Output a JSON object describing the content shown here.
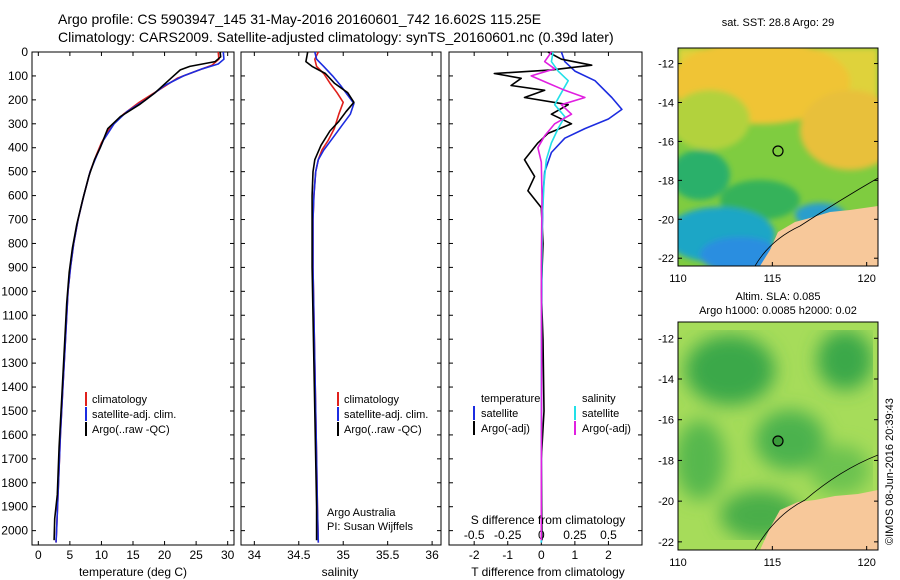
{
  "title_line1": "Argo profile: CS 5903947_145 31-May-2016 20160601_742 16.602S 115.25E",
  "title_line2": "Climatology: CARS2009. Satellite-adjusted climatology: synTS_20160601.nc (0.39d later)",
  "credit": "©IMOS 08-Jun-2016 20:39:43",
  "colors": {
    "climatology": "#e0201c",
    "satellite": "#1c2ce0",
    "argo": "#000000",
    "salinity_satellite": "#22e0e8",
    "salinity_argo": "#e020e0",
    "land": "#f7c89a"
  },
  "depth_ticks": [
    "0",
    "100",
    "200",
    "300",
    "400",
    "500",
    "600",
    "700",
    "800",
    "900",
    "1000",
    "1100",
    "1200",
    "1300",
    "1400",
    "1500",
    "1600",
    "1700",
    "1800",
    "1900",
    "2000"
  ],
  "chart_data": [
    {
      "type": "line",
      "xlabel": "temperature (deg C)",
      "ylabel": "",
      "xlim": [
        -1,
        31
      ],
      "ylim": [
        2060,
        0
      ],
      "xticks": [
        "0",
        "5",
        "10",
        "15",
        "20",
        "25",
        "30"
      ],
      "legend": [
        "climatology",
        "satellite-adj. clim.",
        "Argo(..raw -QC)"
      ],
      "legend_placement": "bottom-right",
      "series": [
        {
          "name": "climatology",
          "color_key": "climatology",
          "points": [
            [
              28.5,
              0
            ],
            [
              28.6,
              30
            ],
            [
              27.5,
              55
            ],
            [
              25,
              80
            ],
            [
              22,
              110
            ],
            [
              19,
              160
            ],
            [
              16,
              210
            ],
            [
              13.5,
              260
            ],
            [
              11.5,
              310
            ],
            [
              10,
              380
            ],
            [
              9.2,
              430
            ],
            [
              8.2,
              500
            ],
            [
              7.2,
              600
            ],
            [
              6.3,
              700
            ],
            [
              5.6,
              800
            ],
            [
              5.1,
              900
            ],
            [
              4.7,
              1000
            ],
            [
              4.3,
              1200
            ],
            [
              3.9,
              1400
            ],
            [
              3.5,
              1600
            ],
            [
              3.2,
              1800
            ],
            [
              2.9,
              2000
            ],
            [
              2.8,
              2050
            ]
          ]
        },
        {
          "name": "satellite-adj. clim.",
          "color_key": "satellite",
          "points": [
            [
              29.3,
              0
            ],
            [
              29.4,
              30
            ],
            [
              28.5,
              50
            ],
            [
              26,
              70
            ],
            [
              23,
              100
            ],
            [
              20,
              140
            ],
            [
              17,
              200
            ],
            [
              14,
              250
            ],
            [
              12,
              300
            ],
            [
              10.3,
              370
            ],
            [
              9.3,
              430
            ],
            [
              8.2,
              500
            ],
            [
              7.2,
              600
            ],
            [
              6.3,
              700
            ],
            [
              5.6,
              800
            ],
            [
              5.1,
              900
            ],
            [
              4.7,
              1000
            ],
            [
              4.3,
              1200
            ],
            [
              3.9,
              1400
            ],
            [
              3.5,
              1600
            ],
            [
              3.2,
              1800
            ],
            [
              2.9,
              2000
            ],
            [
              2.8,
              2050
            ]
          ]
        },
        {
          "name": "Argo(..raw -QC)",
          "color_key": "argo",
          "points": [
            [
              28.8,
              0
            ],
            [
              28.9,
              20
            ],
            [
              28,
              40
            ],
            [
              24,
              60
            ],
            [
              22.5,
              75
            ],
            [
              21,
              110
            ],
            [
              18.5,
              170
            ],
            [
              16,
              220
            ],
            [
              13,
              270
            ],
            [
              11,
              320
            ],
            [
              9.8,
              400
            ],
            [
              8.9,
              450
            ],
            [
              8,
              520
            ],
            [
              7,
              620
            ],
            [
              6.1,
              720
            ],
            [
              5.4,
              820
            ],
            [
              4.9,
              920
            ],
            [
              4.5,
              1050
            ],
            [
              4.1,
              1250
            ],
            [
              3.7,
              1450
            ],
            [
              3.3,
              1650
            ],
            [
              3,
              1850
            ],
            [
              2.6,
              1950
            ],
            [
              2.5,
              2040
            ]
          ]
        }
      ]
    },
    {
      "type": "line",
      "xlabel": "salinity",
      "ylabel": "",
      "xlim": [
        33.85,
        36.1
      ],
      "ylim": [
        2060,
        0
      ],
      "xticks": [
        "34",
        "34.5",
        "35",
        "35.5",
        "36"
      ],
      "legend": [
        "climatology",
        "satellite-adj. clim.",
        "Argo(..raw -QC)"
      ],
      "legend_placement": "bottom-right",
      "annotation": [
        "Argo Australia",
        "PI: Susan Wijffels"
      ],
      "series": [
        {
          "name": "climatology",
          "color_key": "climatology",
          "points": [
            [
              34.72,
              0
            ],
            [
              34.68,
              30
            ],
            [
              34.7,
              60
            ],
            [
              34.78,
              90
            ],
            [
              34.85,
              130
            ],
            [
              34.93,
              170
            ],
            [
              35,
              210
            ],
            [
              34.95,
              260
            ],
            [
              34.9,
              320
            ],
            [
              34.83,
              370
            ],
            [
              34.76,
              410
            ],
            [
              34.72,
              450
            ],
            [
              34.69,
              500
            ],
            [
              34.67,
              600
            ],
            [
              34.66,
              700
            ],
            [
              34.66,
              900
            ],
            [
              34.67,
              1100
            ],
            [
              34.68,
              1300
            ],
            [
              34.69,
              1500
            ],
            [
              34.7,
              1700
            ],
            [
              34.71,
              1900
            ],
            [
              34.72,
              2050
            ]
          ]
        },
        {
          "name": "satellite-adj. clim.",
          "color_key": "satellite",
          "points": [
            [
              34.68,
              0
            ],
            [
              34.7,
              30
            ],
            [
              34.78,
              60
            ],
            [
              34.88,
              100
            ],
            [
              34.97,
              140
            ],
            [
              35.05,
              180
            ],
            [
              35.12,
              215
            ],
            [
              35.08,
              260
            ],
            [
              34.98,
              310
            ],
            [
              34.88,
              360
            ],
            [
              34.78,
              410
            ],
            [
              34.72,
              450
            ],
            [
              34.69,
              500
            ],
            [
              34.67,
              600
            ],
            [
              34.66,
              700
            ],
            [
              34.66,
              900
            ],
            [
              34.67,
              1100
            ],
            [
              34.68,
              1300
            ],
            [
              34.69,
              1500
            ],
            [
              34.7,
              1700
            ],
            [
              34.71,
              1900
            ],
            [
              34.72,
              2050
            ]
          ]
        },
        {
          "name": "Argo(..raw -QC)",
          "color_key": "argo",
          "points": [
            [
              34.6,
              0
            ],
            [
              34.58,
              40
            ],
            [
              34.65,
              60
            ],
            [
              34.8,
              90
            ],
            [
              34.9,
              130
            ],
            [
              35.05,
              170
            ],
            [
              35.12,
              210
            ],
            [
              35.03,
              250
            ],
            [
              34.95,
              290
            ],
            [
              34.85,
              330
            ],
            [
              34.75,
              390
            ],
            [
              34.68,
              450
            ],
            [
              34.66,
              500
            ],
            [
              34.65,
              600
            ],
            [
              34.65,
              700
            ],
            [
              34.65,
              900
            ],
            [
              34.66,
              1100
            ],
            [
              34.67,
              1300
            ],
            [
              34.68,
              1500
            ],
            [
              34.69,
              1700
            ],
            [
              34.7,
              1900
            ],
            [
              34.7,
              2040
            ]
          ]
        }
      ]
    },
    {
      "type": "line",
      "xlabel": "T difference from climatology",
      "xlabel_top": "S difference from climatology",
      "ylabel": "",
      "xlim": [
        -2.75,
        3.0
      ],
      "ylim": [
        2060,
        0
      ],
      "xticks": [
        "-2",
        "-1",
        "0",
        "1",
        "2"
      ],
      "xticks_top": [
        "-0.5",
        "-0.25",
        "0",
        "0.25",
        "0.5"
      ],
      "legend": [
        "temperature",
        "satellite",
        "Argo(-adj)",
        "salinity",
        "satellite",
        "Argo(-adj)"
      ],
      "legend_placement": "bottom",
      "series": [
        {
          "name": "satellite",
          "group": "temperature",
          "color_key": "satellite",
          "points": [
            [
              0.6,
              0
            ],
            [
              0.7,
              40
            ],
            [
              1,
              80
            ],
            [
              1.6,
              120
            ],
            [
              2.1,
              190
            ],
            [
              2.4,
              240
            ],
            [
              2,
              280
            ],
            [
              1.3,
              320
            ],
            [
              0.7,
              360
            ],
            [
              0.3,
              420
            ],
            [
              0.1,
              500
            ],
            [
              0.05,
              600
            ],
            [
              0.02,
              800
            ],
            [
              0.01,
              1200
            ],
            [
              0,
              1600
            ],
            [
              0,
              2050
            ]
          ]
        },
        {
          "name": "Argo(-adj)",
          "group": "temperature",
          "color_key": "argo",
          "points": [
            [
              0.2,
              0
            ],
            [
              0.6,
              30
            ],
            [
              1.5,
              55
            ],
            [
              0.3,
              75
            ],
            [
              -1.4,
              90
            ],
            [
              -0.6,
              110
            ],
            [
              -0.9,
              140
            ],
            [
              0.1,
              160
            ],
            [
              -0.5,
              190
            ],
            [
              0.8,
              220
            ],
            [
              0.3,
              260
            ],
            [
              0.9,
              300
            ],
            [
              0.2,
              340
            ],
            [
              -0.1,
              380
            ],
            [
              -0.5,
              450
            ],
            [
              -0.2,
              520
            ],
            [
              -0.4,
              580
            ],
            [
              0,
              650
            ],
            [
              0.05,
              800
            ],
            [
              0,
              1000
            ],
            [
              0.05,
              1200
            ],
            [
              0.08,
              1500
            ],
            [
              0,
              1700
            ],
            [
              0.02,
              2040
            ]
          ]
        },
        {
          "name": "satellite",
          "group": "salinity",
          "color_key": "salinity_satellite",
          "points": [
            [
              0.35,
              0
            ],
            [
              0.3,
              40
            ],
            [
              0.5,
              80
            ],
            [
              0.8,
              120
            ],
            [
              0.6,
              170
            ],
            [
              0.4,
              220
            ],
            [
              0.7,
              270
            ],
            [
              0.5,
              320
            ],
            [
              0.3,
              380
            ],
            [
              0.15,
              450
            ],
            [
              0.08,
              550
            ],
            [
              0.03,
              700
            ],
            [
              0.01,
              1000
            ],
            [
              0,
              1500
            ],
            [
              0,
              2050
            ]
          ]
        },
        {
          "name": "Argo(-adj)",
          "group": "salinity",
          "color_key": "salinity_argo",
          "points": [
            [
              0.3,
              0
            ],
            [
              0.1,
              40
            ],
            [
              0.4,
              70
            ],
            [
              -0.3,
              100
            ],
            [
              0.2,
              130
            ],
            [
              0.7,
              160
            ],
            [
              1.3,
              190
            ],
            [
              0.6,
              220
            ],
            [
              0.9,
              260
            ],
            [
              0.4,
              300
            ],
            [
              0.1,
              350
            ],
            [
              -0.1,
              400
            ],
            [
              0,
              460
            ],
            [
              0.02,
              600
            ],
            [
              0,
              900
            ],
            [
              0.01,
              1300
            ],
            [
              0,
              1800
            ],
            [
              0,
              2040
            ]
          ]
        }
      ]
    }
  ],
  "maps": [
    {
      "title_lines": [
        "sat. SST: 28.8 Argo: 29"
      ],
      "y_ticks": [
        "-12",
        "-14",
        "-16",
        "-18",
        "-20",
        "-22"
      ],
      "x_ticks": [
        "110",
        "115",
        "120"
      ]
    },
    {
      "title_lines": [
        "Altim. SLA: 0.085",
        "Argo h1000: 0.0085 h2000: 0.02"
      ],
      "y_ticks": [
        "-12",
        "-14",
        "-16",
        "-18",
        "-20",
        "-22"
      ],
      "x_ticks": [
        "110",
        "115",
        "120"
      ]
    }
  ]
}
